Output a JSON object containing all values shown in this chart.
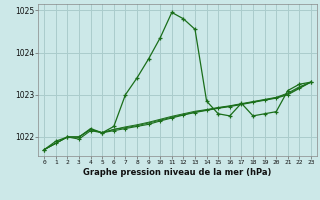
{
  "title": "Graphe pression niveau de la mer (hPa)",
  "background_color": "#cce8e8",
  "line_color": "#1a6e1a",
  "grid_color": "#aacccc",
  "x_values": [
    0,
    1,
    2,
    3,
    4,
    5,
    6,
    7,
    8,
    9,
    10,
    11,
    12,
    13,
    14,
    15,
    16,
    17,
    18,
    19,
    20,
    21,
    22,
    23
  ],
  "series1": [
    1021.7,
    1021.9,
    1022.0,
    1022.0,
    1022.2,
    1022.1,
    1022.25,
    1023.0,
    1023.4,
    1023.85,
    1024.35,
    1024.95,
    1024.8,
    1024.55,
    1022.85,
    1022.55,
    1022.5,
    1022.8,
    1022.5,
    1022.55,
    1022.6,
    1023.1,
    1023.25,
    1023.3
  ],
  "series2": [
    1021.7,
    1021.85,
    1022.0,
    1021.95,
    1022.15,
    1022.1,
    1022.15,
    1022.2,
    1022.25,
    1022.3,
    1022.38,
    1022.45,
    1022.52,
    1022.58,
    1022.63,
    1022.68,
    1022.72,
    1022.77,
    1022.82,
    1022.87,
    1022.92,
    1023.0,
    1023.15,
    1023.3
  ],
  "series3": [
    1021.7,
    1021.85,
    1022.0,
    1022.0,
    1022.18,
    1022.1,
    1022.18,
    1022.22,
    1022.27,
    1022.33,
    1022.4,
    1022.47,
    1022.53,
    1022.59,
    1022.64,
    1022.69,
    1022.73,
    1022.78,
    1022.83,
    1022.88,
    1022.93,
    1023.02,
    1023.17,
    1023.3
  ],
  "series4": [
    1021.7,
    1021.85,
    1022.0,
    1022.0,
    1022.18,
    1022.1,
    1022.18,
    1022.24,
    1022.29,
    1022.35,
    1022.42,
    1022.49,
    1022.55,
    1022.61,
    1022.65,
    1022.7,
    1022.74,
    1022.79,
    1022.84,
    1022.89,
    1022.94,
    1023.04,
    1023.19,
    1023.3
  ],
  "ylim": [
    1021.55,
    1025.15
  ],
  "yticks": [
    1022,
    1023,
    1024,
    1025
  ],
  "xticks": [
    0,
    1,
    2,
    3,
    4,
    5,
    6,
    7,
    8,
    9,
    10,
    11,
    12,
    13,
    14,
    15,
    16,
    17,
    18,
    19,
    20,
    21,
    22,
    23
  ],
  "figwidth": 3.2,
  "figheight": 2.0,
  "dpi": 100
}
